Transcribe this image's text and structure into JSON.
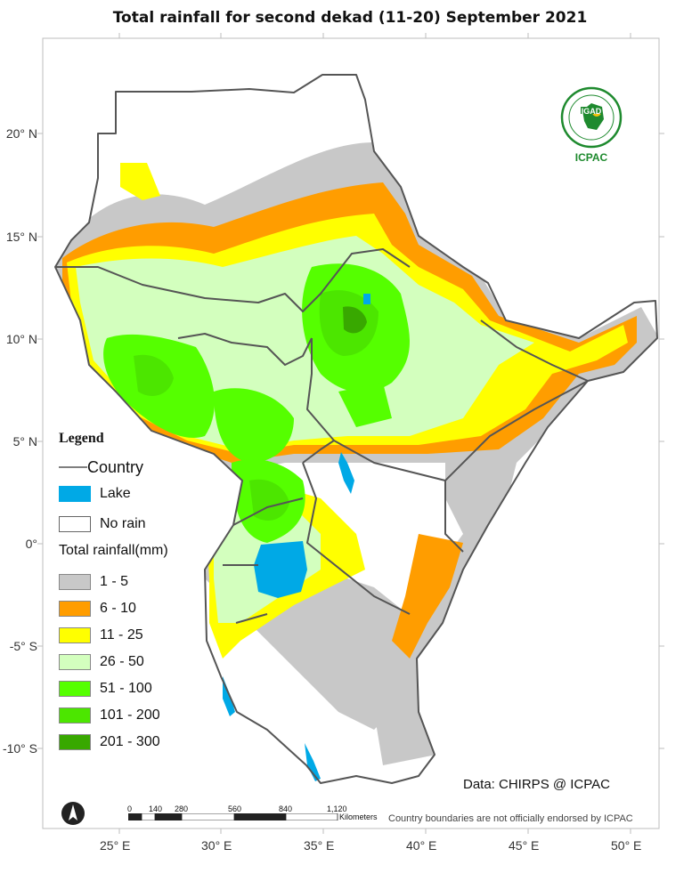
{
  "map": {
    "title": "Total rainfall for  second  dekad (11-20) September  2021",
    "lat_labels": [
      "20° N",
      "15° N",
      "10° N",
      "5° N",
      "0°",
      "-5° S",
      "-10° S"
    ],
    "lon_labels": [
      "25° E",
      "30° E",
      "35° E",
      "40° E",
      "45° E",
      "50° E"
    ],
    "legend": {
      "title": "Legend",
      "country_label": "Country",
      "lake_label": "Lake",
      "norain_label": "No rain",
      "rainfall_title": "Total rainfall(mm)",
      "classes": [
        {
          "label": "1 - 5",
          "color": "#c8c8c8"
        },
        {
          "label": "6 - 10",
          "color": "#ff9d00"
        },
        {
          "label": "11 - 25",
          "color": "#ffff00"
        },
        {
          "label": "26 - 50",
          "color": "#d3ffbe"
        },
        {
          "label": "51 - 100",
          "color": "#55ff00"
        },
        {
          "label": "101 - 200",
          "color": "#4ce600"
        },
        {
          "label": "201 - 300",
          "color": "#38a800"
        }
      ],
      "lake_color": "#00a9e6",
      "country_color": "#555555"
    },
    "logo": {
      "text": "IGAD",
      "org": "ICPAC"
    },
    "data_source": "Data: CHIRPS @ ICPAC",
    "scale_bar": {
      "ticks": [
        "0",
        "140",
        "280",
        "560",
        "840",
        "1,120"
      ],
      "units": "Kilometers"
    },
    "disclaimer": "Country boundaries are not officially endorsed by ICPAC"
  }
}
